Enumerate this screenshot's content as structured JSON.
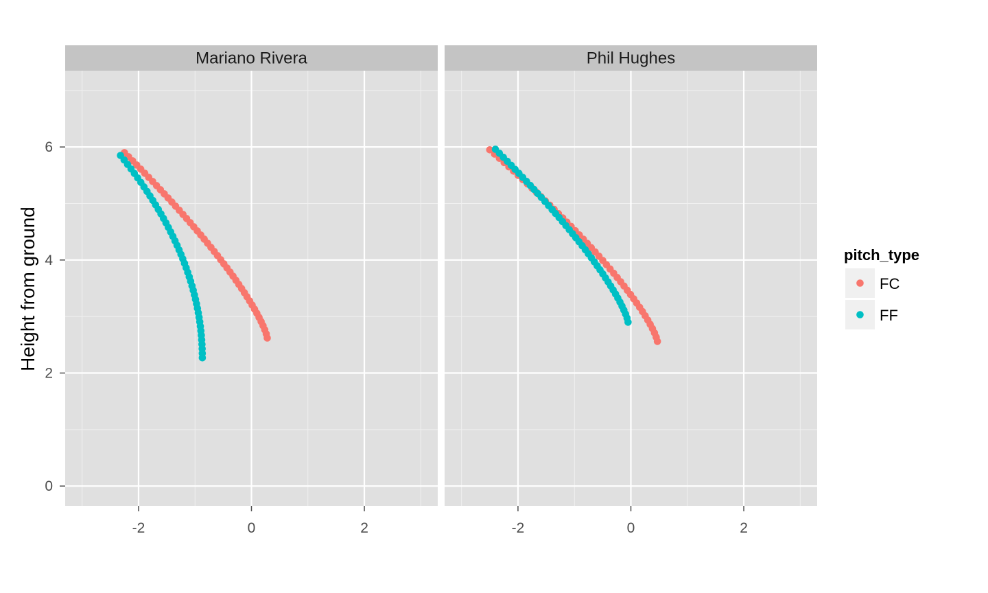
{
  "chart_data": {
    "type": "scatter",
    "ylabel": "Height from ground",
    "xlabel": "",
    "xlim": [
      -3.3,
      3.3
    ],
    "ylim": [
      -0.35,
      7.35
    ],
    "x_ticks": [
      -2,
      0,
      2
    ],
    "y_ticks": [
      0,
      2,
      4,
      6
    ],
    "grid": true,
    "legend": {
      "title": "pitch_type",
      "position": "right"
    },
    "colors": {
      "FC": "#F8766D",
      "FF": "#00BFC4"
    },
    "panels": [
      {
        "name": "Mariano Rivera",
        "series": [
          {
            "name": "FC",
            "start": [
              -2.25,
              5.9
            ],
            "end": [
              0.28,
              2.62
            ],
            "shape": "gentle-arc",
            "points": 46
          },
          {
            "name": "FF",
            "start": [
              -2.32,
              5.85
            ],
            "end": [
              -0.87,
              2.27
            ],
            "shape": "steep-arc",
            "points": 46
          }
        ]
      },
      {
        "name": "Phil Hughes",
        "series": [
          {
            "name": "FC",
            "start": [
              -2.5,
              5.95
            ],
            "end": [
              0.47,
              2.56
            ],
            "shape": "gentle-arc",
            "points": 46
          },
          {
            "name": "FF",
            "start": [
              -2.4,
              5.96
            ],
            "end": [
              -0.05,
              2.9
            ],
            "shape": "gentle-arc",
            "points": 44
          }
        ]
      }
    ]
  }
}
